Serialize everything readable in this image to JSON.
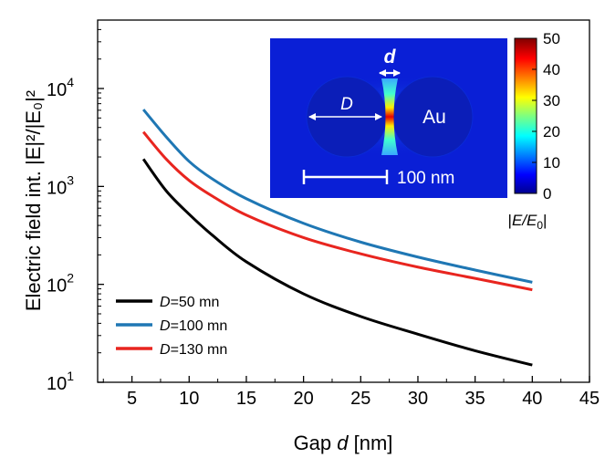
{
  "chart_data": {
    "type": "line",
    "xlabel": {
      "prefix": "Gap ",
      "var": "d",
      "suffix": " [nm]"
    },
    "ylabel": "Electric field int. |E|²/|E₀|²",
    "xlim": [
      2,
      45
    ],
    "ylim": [
      10,
      50000
    ],
    "y_scale": "log",
    "x_ticks": [
      5,
      10,
      15,
      20,
      25,
      30,
      35,
      40,
      45
    ],
    "y_ticks": [
      {
        "value": 10,
        "base": "10",
        "exp": "1"
      },
      {
        "value": 100,
        "base": "10",
        "exp": "2"
      },
      {
        "value": 1000,
        "base": "10",
        "exp": "3"
      },
      {
        "value": 10000,
        "base": "10",
        "exp": "4"
      }
    ],
    "grid": false,
    "legend_position": "bottom-left",
    "series": [
      {
        "name": "D=50 mn",
        "var": "D",
        "rest": "=50 mn",
        "color": "#000000",
        "x": [
          6,
          8,
          10,
          12,
          15,
          20,
          25,
          30,
          35,
          40
        ],
        "y": [
          1900,
          900,
          520,
          320,
          170,
          80,
          47,
          31,
          21,
          15
        ]
      },
      {
        "name": "D=100 mn",
        "var": "D",
        "rest": "=100 mn",
        "color": "#1f77b4",
        "x": [
          6,
          8,
          10,
          12,
          15,
          20,
          25,
          30,
          35,
          40
        ],
        "y": [
          6100,
          3200,
          1800,
          1200,
          750,
          420,
          270,
          190,
          140,
          105
        ]
      },
      {
        "name": "D=130 mn",
        "var": "D",
        "rest": "=130 mn",
        "color": "#e8251f",
        "x": [
          6,
          8,
          10,
          12,
          15,
          20,
          25,
          30,
          35,
          40
        ],
        "y": [
          3600,
          1900,
          1150,
          800,
          510,
          300,
          205,
          150,
          115,
          88
        ]
      }
    ],
    "inset": {
      "gap_label": "d",
      "diameter_label": "D",
      "material_label": "Au",
      "scalebar_label": "100 nm",
      "colorbar_ticks": [
        "50",
        "40",
        "30",
        "20",
        "10",
        "0"
      ],
      "colorbar_label": {
        "prefix": "|",
        "var": "E/E",
        "sub": "0",
        "suffix": "|"
      },
      "colormap": "jet"
    }
  }
}
